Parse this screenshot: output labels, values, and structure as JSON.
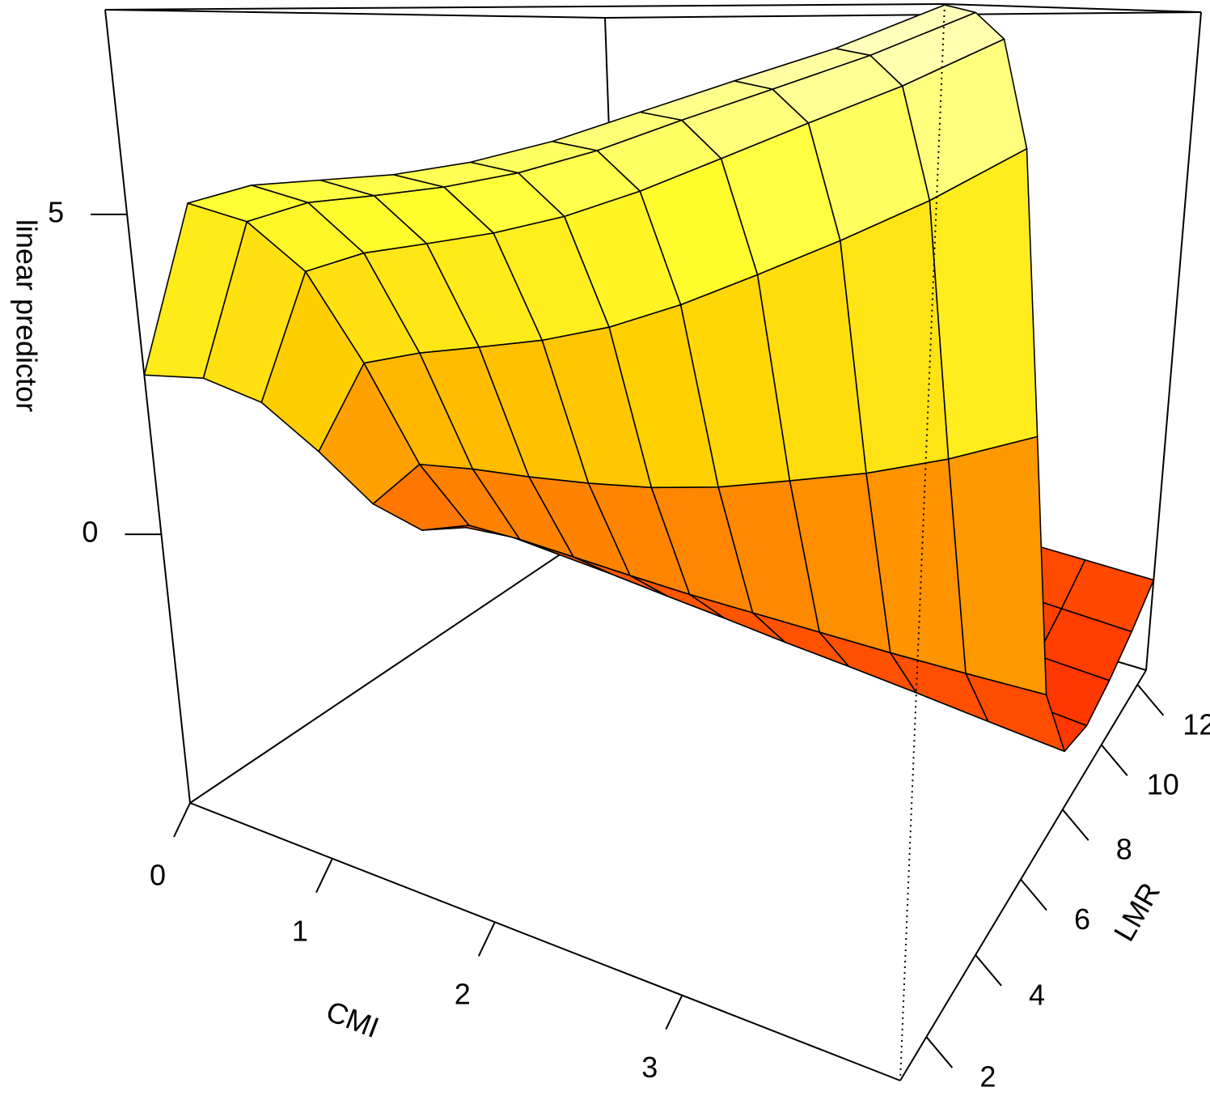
{
  "chart_data": {
    "type": "surface",
    "xlabel": "CMI",
    "ylabel": "LMR",
    "zlabel": "linear predictor",
    "x": [
      0,
      0.4,
      0.8,
      1.2,
      1.6,
      2.0,
      2.4,
      2.8,
      3.2,
      3.6,
      4.0
    ],
    "y": [
      1,
      2.15,
      3.3,
      4.45,
      5.6,
      6.75,
      7.9,
      9.05,
      10.2,
      11.35,
      12.5
    ],
    "z": [
      [
        2.49,
        2.18,
        1.49,
        0.3,
        -1.05,
        -2,
        -2.42,
        -2.52,
        -2.44,
        -2.25,
        -1.99
      ],
      [
        5.25,
        4.83,
        3.85,
        2.05,
        -0.09,
        -1.65,
        -2.35,
        -2.55,
        -2.49,
        -2.31,
        -2.04
      ],
      [
        5.59,
        5.21,
        4.26,
        2.38,
        0.04,
        -1.66,
        -2.44,
        -2.64,
        -2.58,
        -2.38,
        -2.09
      ],
      [
        5.73,
        5.39,
        4.51,
        2.63,
        0.12,
        -1.72,
        -2.53,
        -2.74,
        -2.65,
        -2.44,
        -2.15
      ],
      [
        5.87,
        5.59,
        4.77,
        2.89,
        0.23,
        -1.78,
        -2.64,
        -2.83,
        -2.74,
        -2.51,
        -2.2
      ],
      [
        6.1,
        5.86,
        5.11,
        3.24,
        0.38,
        -1.83,
        -2.74,
        -2.92,
        -2.82,
        -2.58,
        -2.25
      ],
      [
        6.43,
        6.23,
        5.56,
        3.72,
        0.61,
        -1.85,
        -2.85,
        -3.02,
        -2.89,
        -2.64,
        -2.3
      ],
      [
        6.85,
        6.69,
        6.09,
        4.29,
        0.93,
        -1.87,
        -2.94,
        -3.12,
        -2.98,
        -2.71,
        -2.35
      ],
      [
        7.27,
        7.13,
        6.63,
        4.89,
        1.26,
        -1.89,
        -3.04,
        -3.21,
        -3.06,
        -2.77,
        -2.4
      ],
      [
        7.68,
        7.58,
        7.16,
        5.54,
        1.68,
        -1.89,
        -3.15,
        -3.31,
        -3.14,
        -2.84,
        -2.45
      ],
      [
        8.19,
        8.11,
        7.78,
        6.31,
        2.2,
        -1.88,
        -3.25,
        -3.4,
        -3.21,
        -2.91,
        -2.5
      ]
    ],
    "xlim": [
      0,
      4
    ],
    "ylim": [
      1,
      12.5
    ],
    "zlim": [
      -4.2,
      8.2
    ],
    "xticks": [
      0,
      1,
      2,
      3
    ],
    "yticks": [
      2,
      4,
      6,
      8,
      10,
      12
    ],
    "zticks": [
      0,
      5
    ],
    "colormap": [
      "#ff1a00",
      "#ff7a00",
      "#ffd000",
      "#ffff30",
      "#ffffc8"
    ]
  }
}
